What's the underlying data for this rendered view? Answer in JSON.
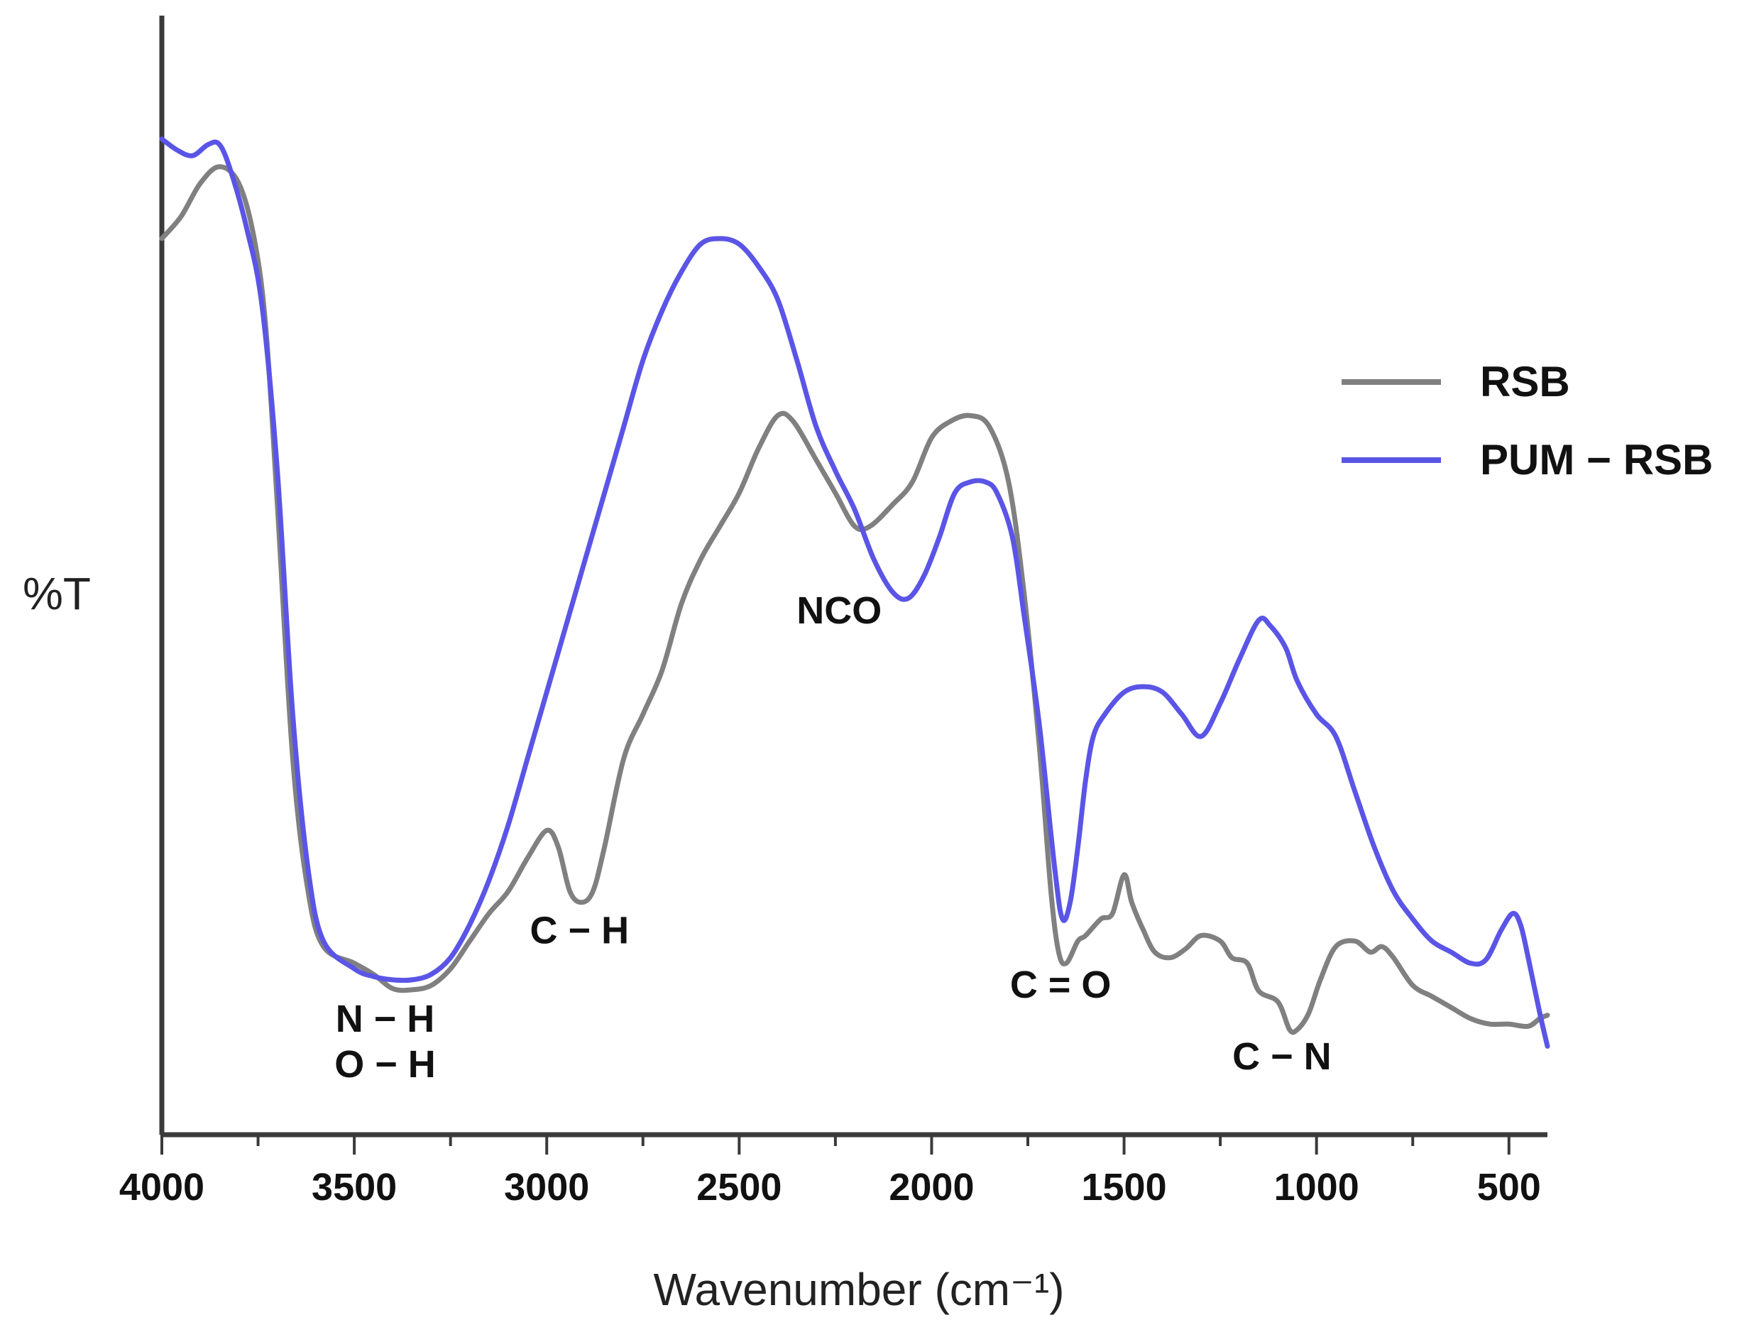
{
  "chart_data": {
    "type": "line",
    "title": "",
    "xlabel": "Wavenumber (cm⁻¹)",
    "ylabel": "%T",
    "xlim": [
      4000,
      400
    ],
    "ylim": [
      0,
      100
    ],
    "x_reversed": true,
    "grid": false,
    "legend_position": "top-right",
    "xticks": [
      {
        "value": 4000,
        "label": "4000"
      },
      {
        "value": 3500,
        "label": "3500"
      },
      {
        "value": 3000,
        "label": "3000"
      },
      {
        "value": 2500,
        "label": "2500"
      },
      {
        "value": 2000,
        "label": "2000"
      },
      {
        "value": 1500,
        "label": "1500"
      },
      {
        "value": 1000,
        "label": "1000"
      },
      {
        "value": 500,
        "label": "500"
      }
    ],
    "minor_xticks": [
      3750,
      3250,
      2750,
      2250,
      1750,
      1250,
      750
    ],
    "series": [
      {
        "name": "RSB",
        "color": "#808080",
        "points": [
          [
            4000,
            81
          ],
          [
            3950,
            83
          ],
          [
            3900,
            86
          ],
          [
            3850,
            87.5
          ],
          [
            3800,
            86
          ],
          [
            3760,
            81
          ],
          [
            3730,
            73
          ],
          [
            3700,
            57
          ],
          [
            3660,
            34
          ],
          [
            3620,
            22
          ],
          [
            3580,
            17
          ],
          [
            3500,
            15.5
          ],
          [
            3450,
            14.5
          ],
          [
            3400,
            13.2
          ],
          [
            3350,
            13.1
          ],
          [
            3300,
            13.5
          ],
          [
            3250,
            15
          ],
          [
            3200,
            17.5
          ],
          [
            3150,
            20
          ],
          [
            3100,
            22
          ],
          [
            3050,
            25
          ],
          [
            3000,
            27.5
          ],
          [
            2970,
            26
          ],
          [
            2940,
            22
          ],
          [
            2910,
            21
          ],
          [
            2880,
            22
          ],
          [
            2850,
            26
          ],
          [
            2800,
            34
          ],
          [
            2750,
            38
          ],
          [
            2700,
            42
          ],
          [
            2650,
            48
          ],
          [
            2600,
            52
          ],
          [
            2550,
            55
          ],
          [
            2500,
            58
          ],
          [
            2450,
            62
          ],
          [
            2400,
            65
          ],
          [
            2360,
            64.5
          ],
          [
            2300,
            61
          ],
          [
            2250,
            58
          ],
          [
            2200,
            55
          ],
          [
            2160,
            55
          ],
          [
            2100,
            57
          ],
          [
            2050,
            59
          ],
          [
            2000,
            63
          ],
          [
            1950,
            64.5
          ],
          [
            1900,
            65
          ],
          [
            1850,
            64
          ],
          [
            1800,
            59
          ],
          [
            1760,
            49
          ],
          [
            1720,
            35
          ],
          [
            1690,
            22
          ],
          [
            1670,
            16.5
          ],
          [
            1650,
            15.5
          ],
          [
            1620,
            17.5
          ],
          [
            1600,
            18
          ],
          [
            1560,
            19.5
          ],
          [
            1530,
            20
          ],
          [
            1500,
            23.5
          ],
          [
            1480,
            21
          ],
          [
            1450,
            18.5
          ],
          [
            1420,
            16.5
          ],
          [
            1380,
            16
          ],
          [
            1340,
            16.8
          ],
          [
            1300,
            18
          ],
          [
            1250,
            17.5
          ],
          [
            1220,
            16
          ],
          [
            1180,
            15.5
          ],
          [
            1150,
            13
          ],
          [
            1100,
            12
          ],
          [
            1070,
            9.5
          ],
          [
            1050,
            9.5
          ],
          [
            1020,
            11
          ],
          [
            990,
            14
          ],
          [
            950,
            17
          ],
          [
            900,
            17.5
          ],
          [
            860,
            16.5
          ],
          [
            830,
            17
          ],
          [
            800,
            16
          ],
          [
            750,
            13.5
          ],
          [
            700,
            12.5
          ],
          [
            650,
            11.5
          ],
          [
            600,
            10.5
          ],
          [
            550,
            10
          ],
          [
            500,
            10
          ],
          [
            450,
            9.8
          ],
          [
            420,
            10.5
          ],
          [
            400,
            10.8
          ]
        ]
      },
      {
        "name": "PUM − RSB",
        "color": "#5a55e6",
        "points": [
          [
            4000,
            90
          ],
          [
            3960,
            89
          ],
          [
            3920,
            88.5
          ],
          [
            3880,
            89.5
          ],
          [
            3850,
            89.5
          ],
          [
            3820,
            87
          ],
          [
            3780,
            82
          ],
          [
            3740,
            75
          ],
          [
            3700,
            60
          ],
          [
            3660,
            38
          ],
          [
            3620,
            24
          ],
          [
            3580,
            17.5
          ],
          [
            3500,
            15
          ],
          [
            3450,
            14.3
          ],
          [
            3400,
            14
          ],
          [
            3350,
            14
          ],
          [
            3300,
            14.5
          ],
          [
            3250,
            16
          ],
          [
            3200,
            19
          ],
          [
            3150,
            23
          ],
          [
            3100,
            28
          ],
          [
            3050,
            34
          ],
          [
            3000,
            40
          ],
          [
            2950,
            46
          ],
          [
            2900,
            52
          ],
          [
            2850,
            58
          ],
          [
            2800,
            64
          ],
          [
            2750,
            70
          ],
          [
            2700,
            74.5
          ],
          [
            2650,
            78
          ],
          [
            2600,
            80.5
          ],
          [
            2550,
            81
          ],
          [
            2500,
            80.5
          ],
          [
            2450,
            78.5
          ],
          [
            2400,
            75.5
          ],
          [
            2350,
            70
          ],
          [
            2300,
            64
          ],
          [
            2250,
            60
          ],
          [
            2200,
            56.5
          ],
          [
            2150,
            52
          ],
          [
            2100,
            49
          ],
          [
            2060,
            48.5
          ],
          [
            2020,
            50.5
          ],
          [
            1980,
            54
          ],
          [
            1940,
            58
          ],
          [
            1900,
            59
          ],
          [
            1860,
            59
          ],
          [
            1830,
            58
          ],
          [
            1790,
            54
          ],
          [
            1760,
            47
          ],
          [
            1720,
            37
          ],
          [
            1680,
            24
          ],
          [
            1660,
            19.5
          ],
          [
            1640,
            21
          ],
          [
            1620,
            26
          ],
          [
            1600,
            32
          ],
          [
            1580,
            36
          ],
          [
            1550,
            38
          ],
          [
            1500,
            40
          ],
          [
            1450,
            40.5
          ],
          [
            1400,
            40
          ],
          [
            1350,
            38
          ],
          [
            1300,
            36
          ],
          [
            1250,
            39
          ],
          [
            1200,
            43
          ],
          [
            1150,
            46.5
          ],
          [
            1120,
            46
          ],
          [
            1080,
            44
          ],
          [
            1050,
            41
          ],
          [
            1000,
            38
          ],
          [
            950,
            36
          ],
          [
            900,
            31
          ],
          [
            850,
            26
          ],
          [
            800,
            22
          ],
          [
            750,
            19.5
          ],
          [
            700,
            17.5
          ],
          [
            650,
            16.5
          ],
          [
            600,
            15.5
          ],
          [
            560,
            15.8
          ],
          [
            520,
            18.5
          ],
          [
            490,
            20
          ],
          [
            470,
            19
          ],
          [
            450,
            16
          ],
          [
            420,
            11
          ],
          [
            400,
            8
          ]
        ]
      }
    ],
    "annotations": [
      {
        "text": "N − H",
        "x": 3420,
        "y": 9.3
      },
      {
        "text": "O − H",
        "x": 3420,
        "y": 5.2
      },
      {
        "text": "C − H",
        "x": 2915,
        "y": 17.3
      },
      {
        "text": "NCO",
        "x": 2240,
        "y": 46.2
      },
      {
        "text": "C = O",
        "x": 1665,
        "y": 12.4
      },
      {
        "text": "C − N",
        "x": 1090,
        "y": 5.9
      }
    ]
  }
}
